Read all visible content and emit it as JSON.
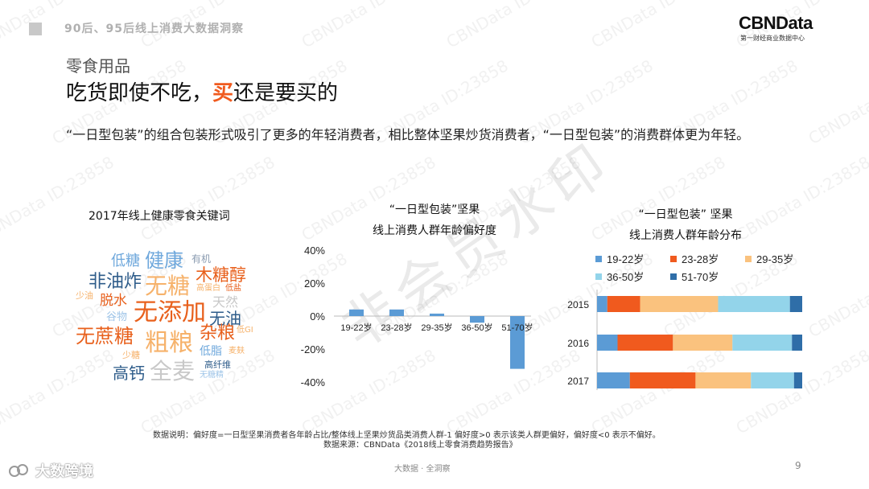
{
  "header": {
    "title": "90后、95后线上消费大数据洞察"
  },
  "logo": {
    "name": "CBNData",
    "tagline": "第一财经商业数据中心"
  },
  "section": "零食用品",
  "headline": {
    "pre": "吃货即使不吃，",
    "highlight": "买",
    "post": "还是要买的"
  },
  "description": "“一日型包装”的组合包装形式吸引了更多的年轻消费者，相比整体坚果炒货消费者，“一日型包装”的消费群体更为年轻。",
  "wordcloud": {
    "title": "2017年线上健康零食关键词",
    "words": [
      {
        "text": "低糖",
        "color": "#6fa8dc"
      },
      {
        "text": "健康",
        "color": "#6fa8dc"
      },
      {
        "text": "有机",
        "color": "#8a9bb0"
      },
      {
        "text": "非油炸",
        "color": "#2e5c8a"
      },
      {
        "text": "无糖",
        "color": "#f6b26b"
      },
      {
        "text": "木糖醇",
        "color": "#e8601c"
      },
      {
        "text": "高蛋白",
        "color": "#f6b26b"
      },
      {
        "text": "低盐",
        "color": "#e8601c"
      },
      {
        "text": "少油",
        "color": "#f6b26b"
      },
      {
        "text": "脱水",
        "color": "#e8601c"
      },
      {
        "text": "天然",
        "color": "#c8c8c8"
      },
      {
        "text": "谷物",
        "color": "#9fc5e8"
      },
      {
        "text": "无添加",
        "color": "#e8601c"
      },
      {
        "text": "无油",
        "color": "#2e5c8a"
      },
      {
        "text": "无蔗糖",
        "color": "#e8601c"
      },
      {
        "text": "粗粮",
        "color": "#f6b26b"
      },
      {
        "text": "杂粮",
        "color": "#e8601c"
      },
      {
        "text": "低GI",
        "color": "#f6b26b"
      },
      {
        "text": "少糖",
        "color": "#f6b26b"
      },
      {
        "text": "低脂",
        "color": "#6fa8dc"
      },
      {
        "text": "麦麸",
        "color": "#f6b26b"
      },
      {
        "text": "高纤维",
        "color": "#2e5c8a"
      },
      {
        "text": "高钙",
        "color": "#2e5c8a"
      },
      {
        "text": "全麦",
        "color": "#c8c8c8"
      },
      {
        "text": "无糖精",
        "color": "#9fc5e8"
      }
    ]
  },
  "chart_data": [
    {
      "type": "bar",
      "title": "“一日型包装”坚果\n线上消费人群年龄偏好度",
      "categories": [
        "19-22岁",
        "23-28岁",
        "29-35岁",
        "36-50岁",
        "51-70岁"
      ],
      "values": [
        0.04,
        0.04,
        0.015,
        -0.04,
        -0.32
      ],
      "ylim": [
        -0.4,
        0.4
      ],
      "yticks": [
        "40%",
        "20%",
        "0%",
        "-20%",
        "-40%"
      ],
      "yticks_values": [
        0.4,
        0.2,
        0,
        -0.2,
        -0.4
      ],
      "color": "#5b9bd5"
    },
    {
      "type": "bar",
      "orientation": "horizontal-stacked",
      "title": "“一日型包装” 坚果\n线上消费人群年龄分布",
      "categories": [
        "2015",
        "2016",
        "2017"
      ],
      "series": [
        {
          "name": "19-22岁",
          "color": "#5b9bd5",
          "values": [
            0.05,
            0.1,
            0.16
          ]
        },
        {
          "name": "23-28岁",
          "color": "#f05a1e",
          "values": [
            0.16,
            0.27,
            0.32
          ]
        },
        {
          "name": "29-35岁",
          "color": "#fac27e",
          "values": [
            0.38,
            0.29,
            0.27
          ]
        },
        {
          "name": "36-50岁",
          "color": "#93d4ea",
          "values": [
            0.35,
            0.29,
            0.21
          ]
        },
        {
          "name": "51-70岁",
          "color": "#2f6ea8",
          "values": [
            0.06,
            0.05,
            0.04
          ]
        }
      ]
    }
  ],
  "footnote": {
    "line1": "数据说明：偏好度=一日型坚果消费者各年龄占比/整体线上坚果炒货品类消费人群-1 偏好度>0 表示该类人群更偏好，偏好度<0 表示不偏好。",
    "line2": "数据来源：CBNData《2018线上零食消费趋势报告》"
  },
  "footer": {
    "center": "大数据 · 全洞察",
    "page": "9",
    "brand": "大数跨境"
  },
  "watermark": {
    "text": "CBNData ID:23858",
    "stamp": "非会员水印"
  }
}
